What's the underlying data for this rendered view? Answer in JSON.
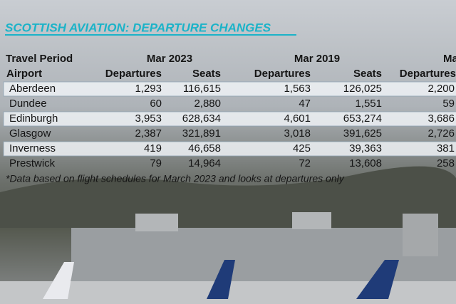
{
  "title": "SCOTTISH AVIATION: DEPARTURE CHANGES",
  "table": {
    "group_header": [
      "Travel Period",
      "Mar 2023",
      "Mar 2019",
      "Ma"
    ],
    "columns": [
      "Airport",
      "Departures",
      "Seats",
      "Departures",
      "Seats",
      "Departures"
    ],
    "rows": [
      [
        "Aberdeen",
        "1,293",
        "116,615",
        "1,563",
        "126,025",
        "2,200"
      ],
      [
        "Dundee",
        "60",
        "2,880",
        "47",
        "1,551",
        "59"
      ],
      [
        "Edinburgh",
        "3,953",
        "628,634",
        "4,601",
        "653,274",
        "3,686"
      ],
      [
        "Glasgow",
        "2,387",
        "321,891",
        "3,018",
        "391,625",
        "2,726"
      ],
      [
        "Inverness",
        "419",
        "46,658",
        "425",
        "39,363",
        "381"
      ],
      [
        "Prestwick",
        "79",
        "14,964",
        "72",
        "13,608",
        "258"
      ]
    ]
  },
  "footnote": "*Data based on flight schedules for March 2023 and looks at departures only"
}
